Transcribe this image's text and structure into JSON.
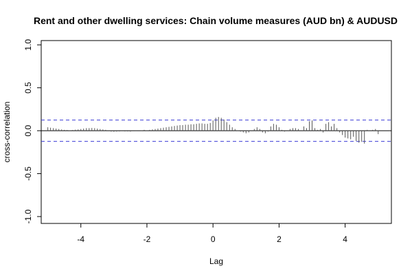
{
  "chart_data": {
    "type": "bar",
    "title": "Rent and other dwelling services: Chain volume measures (AUD bn) & AUDUSD",
    "xlabel": "Lag",
    "ylabel": "cross-correlation",
    "xlim": [
      -5.2,
      5.4
    ],
    "ylim": [
      -1.08,
      1.05
    ],
    "x_ticks": [
      -4,
      -2,
      0,
      2,
      4
    ],
    "x_tick_labels": [
      "-4",
      "-2",
      "0",
      "2",
      "4"
    ],
    "y_ticks": [
      -1.0,
      -0.5,
      0.0,
      0.5,
      1.0
    ],
    "y_tick_labels": [
      "-1.0",
      "-0.5",
      "0.0",
      "0.5",
      "1.0"
    ],
    "confidence_band": 0.124,
    "grid": false,
    "lag_step": 0.0833,
    "x": [
      -5.0,
      -4.917,
      -4.833,
      -4.75,
      -4.667,
      -4.583,
      -4.5,
      -4.417,
      -4.333,
      -4.25,
      -4.167,
      -4.083,
      -4.0,
      -3.917,
      -3.833,
      -3.75,
      -3.667,
      -3.583,
      -3.5,
      -3.417,
      -3.333,
      -3.25,
      -3.167,
      -3.083,
      -3.0,
      -2.917,
      -2.833,
      -2.75,
      -2.667,
      -2.583,
      -2.5,
      -2.417,
      -2.333,
      -2.25,
      -2.167,
      -2.083,
      -2.0,
      -1.917,
      -1.833,
      -1.75,
      -1.667,
      -1.583,
      -1.5,
      -1.417,
      -1.333,
      -1.25,
      -1.167,
      -1.083,
      -1.0,
      -0.917,
      -0.833,
      -0.75,
      -0.667,
      -0.583,
      -0.5,
      -0.417,
      -0.333,
      -0.25,
      -0.167,
      -0.083,
      0.0,
      0.083,
      0.167,
      0.25,
      0.333,
      0.417,
      0.5,
      0.583,
      0.667,
      0.75,
      0.833,
      0.917,
      1.0,
      1.083,
      1.167,
      1.25,
      1.333,
      1.417,
      1.5,
      1.583,
      1.667,
      1.75,
      1.833,
      1.917,
      2.0,
      2.083,
      2.167,
      2.25,
      2.333,
      2.417,
      2.5,
      2.583,
      2.667,
      2.75,
      2.833,
      2.917,
      3.0,
      3.083,
      3.167,
      3.25,
      3.333,
      3.417,
      3.5,
      3.583,
      3.667,
      3.75,
      3.833,
      3.917,
      4.0,
      4.083,
      4.167,
      4.25,
      4.333,
      4.417,
      4.5,
      4.583,
      4.667,
      4.75,
      4.833,
      4.917,
      5.0
    ],
    "values": [
      0.04,
      0.035,
      0.03,
      0.025,
      0.02,
      0.015,
      0.01,
      0.008,
      0.005,
      0.008,
      0.012,
      0.015,
      0.02,
      0.025,
      0.03,
      0.03,
      0.032,
      0.03,
      0.025,
      0.02,
      0.015,
      0.01,
      -0.005,
      -0.01,
      -0.012,
      -0.01,
      -0.008,
      -0.005,
      -0.008,
      -0.008,
      -0.01,
      -0.005,
      -0.005,
      0.0,
      0.005,
      0.01,
      0.005,
      0.01,
      0.015,
      0.02,
      0.025,
      0.03,
      0.035,
      0.04,
      0.045,
      0.05,
      0.055,
      0.06,
      0.065,
      0.065,
      0.07,
      0.07,
      0.075,
      0.075,
      0.08,
      0.085,
      0.085,
      0.08,
      0.08,
      0.09,
      0.12,
      0.15,
      0.16,
      0.15,
      0.13,
      0.1,
      0.07,
      0.04,
      0.02,
      0.005,
      -0.01,
      -0.02,
      -0.03,
      -0.02,
      0.0,
      0.02,
      0.04,
      0.02,
      -0.02,
      -0.03,
      -0.01,
      0.05,
      0.08,
      0.07,
      0.04,
      0.01,
      -0.01,
      0.0,
      0.02,
      0.03,
      0.03,
      0.02,
      0.0,
      0.05,
      0.03,
      0.11,
      0.12,
      0.03,
      0.01,
      0.02,
      -0.02,
      0.08,
      0.1,
      0.05,
      0.08,
      0.03,
      -0.02,
      -0.05,
      -0.08,
      -0.09,
      -0.1,
      -0.07,
      -0.12,
      -0.14,
      -0.13,
      -0.15,
      0.01,
      0.0,
      0.01,
      0.02,
      -0.04
    ]
  }
}
